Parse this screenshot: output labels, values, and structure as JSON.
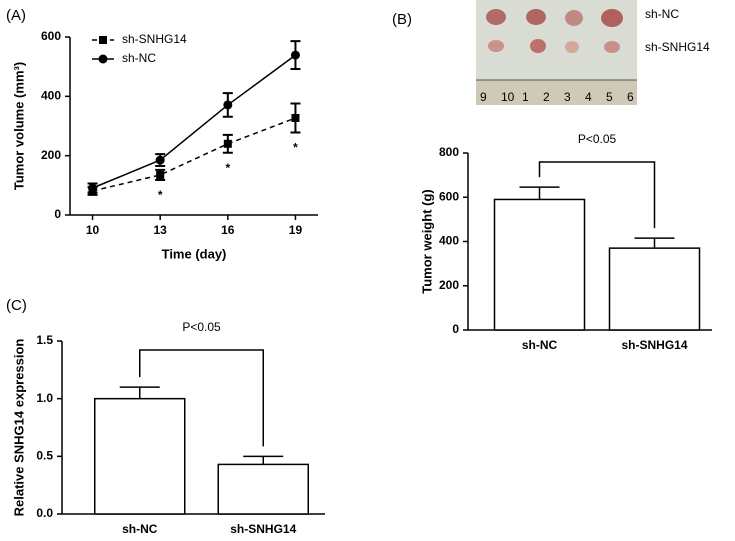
{
  "chart_data": [
    {
      "type": "line",
      "panel": "(A)",
      "x_label": "Time (day)",
      "y_label": "Tumor volume (mm³)",
      "x": [
        10,
        13,
        16,
        19
      ],
      "xlim": [
        9,
        20
      ],
      "xticks": [
        10,
        13,
        16,
        19
      ],
      "ylim": [
        0,
        600
      ],
      "yticks": [
        0,
        200,
        400,
        600
      ],
      "legend": "upper left",
      "series": [
        {
          "name": "sh-SNHG14",
          "color": "#000000",
          "line_style": "dashed",
          "marker": "square",
          "values": [
            81,
            135,
            240,
            327
          ],
          "errors": [
            13,
            17,
            30,
            49
          ]
        },
        {
          "name": "sh-NC",
          "color": "#000000",
          "line_style": "solid",
          "marker": "circle",
          "values": [
            91,
            185,
            371,
            539
          ],
          "errors": [
            15,
            20,
            40,
            47
          ]
        }
      ],
      "annotations": [
        {
          "x": 13,
          "text": "*"
        },
        {
          "x": 16,
          "text": "*"
        },
        {
          "x": 19,
          "text": "*"
        }
      ]
    },
    {
      "type": "bar",
      "panel": "(B)",
      "photo": {
        "labels": [
          "sh-NC",
          "sh-SNHG14"
        ],
        "ruler": [
          "9",
          "10",
          "1",
          "2",
          "3",
          "4",
          "5",
          "6"
        ]
      },
      "y_label": "Tumor weight (g)",
      "categories": [
        "sh-NC",
        "sh-SNHG14"
      ],
      "values": [
        590,
        370
      ],
      "errors": [
        56,
        45
      ],
      "ylim": [
        0,
        800
      ],
      "yticks": [
        0,
        200,
        400,
        600,
        800
      ],
      "color": "#ffffff",
      "annotation": "P<0.05"
    },
    {
      "type": "bar",
      "panel": "(C)",
      "y_label": "Relative SNHG14 expression",
      "categories": [
        "sh-NC",
        "sh-SNHG14"
      ],
      "values": [
        1.0,
        0.43
      ],
      "errors": [
        0.1,
        0.07
      ],
      "ylim": [
        0,
        1.5
      ],
      "yticks": [
        {
          "value": 0,
          "label": "0.0"
        },
        0.5,
        {
          "value": 1,
          "label": "1.0"
        },
        1.5
      ],
      "color": "#ffffff",
      "annotation": "P<0.05"
    }
  ]
}
